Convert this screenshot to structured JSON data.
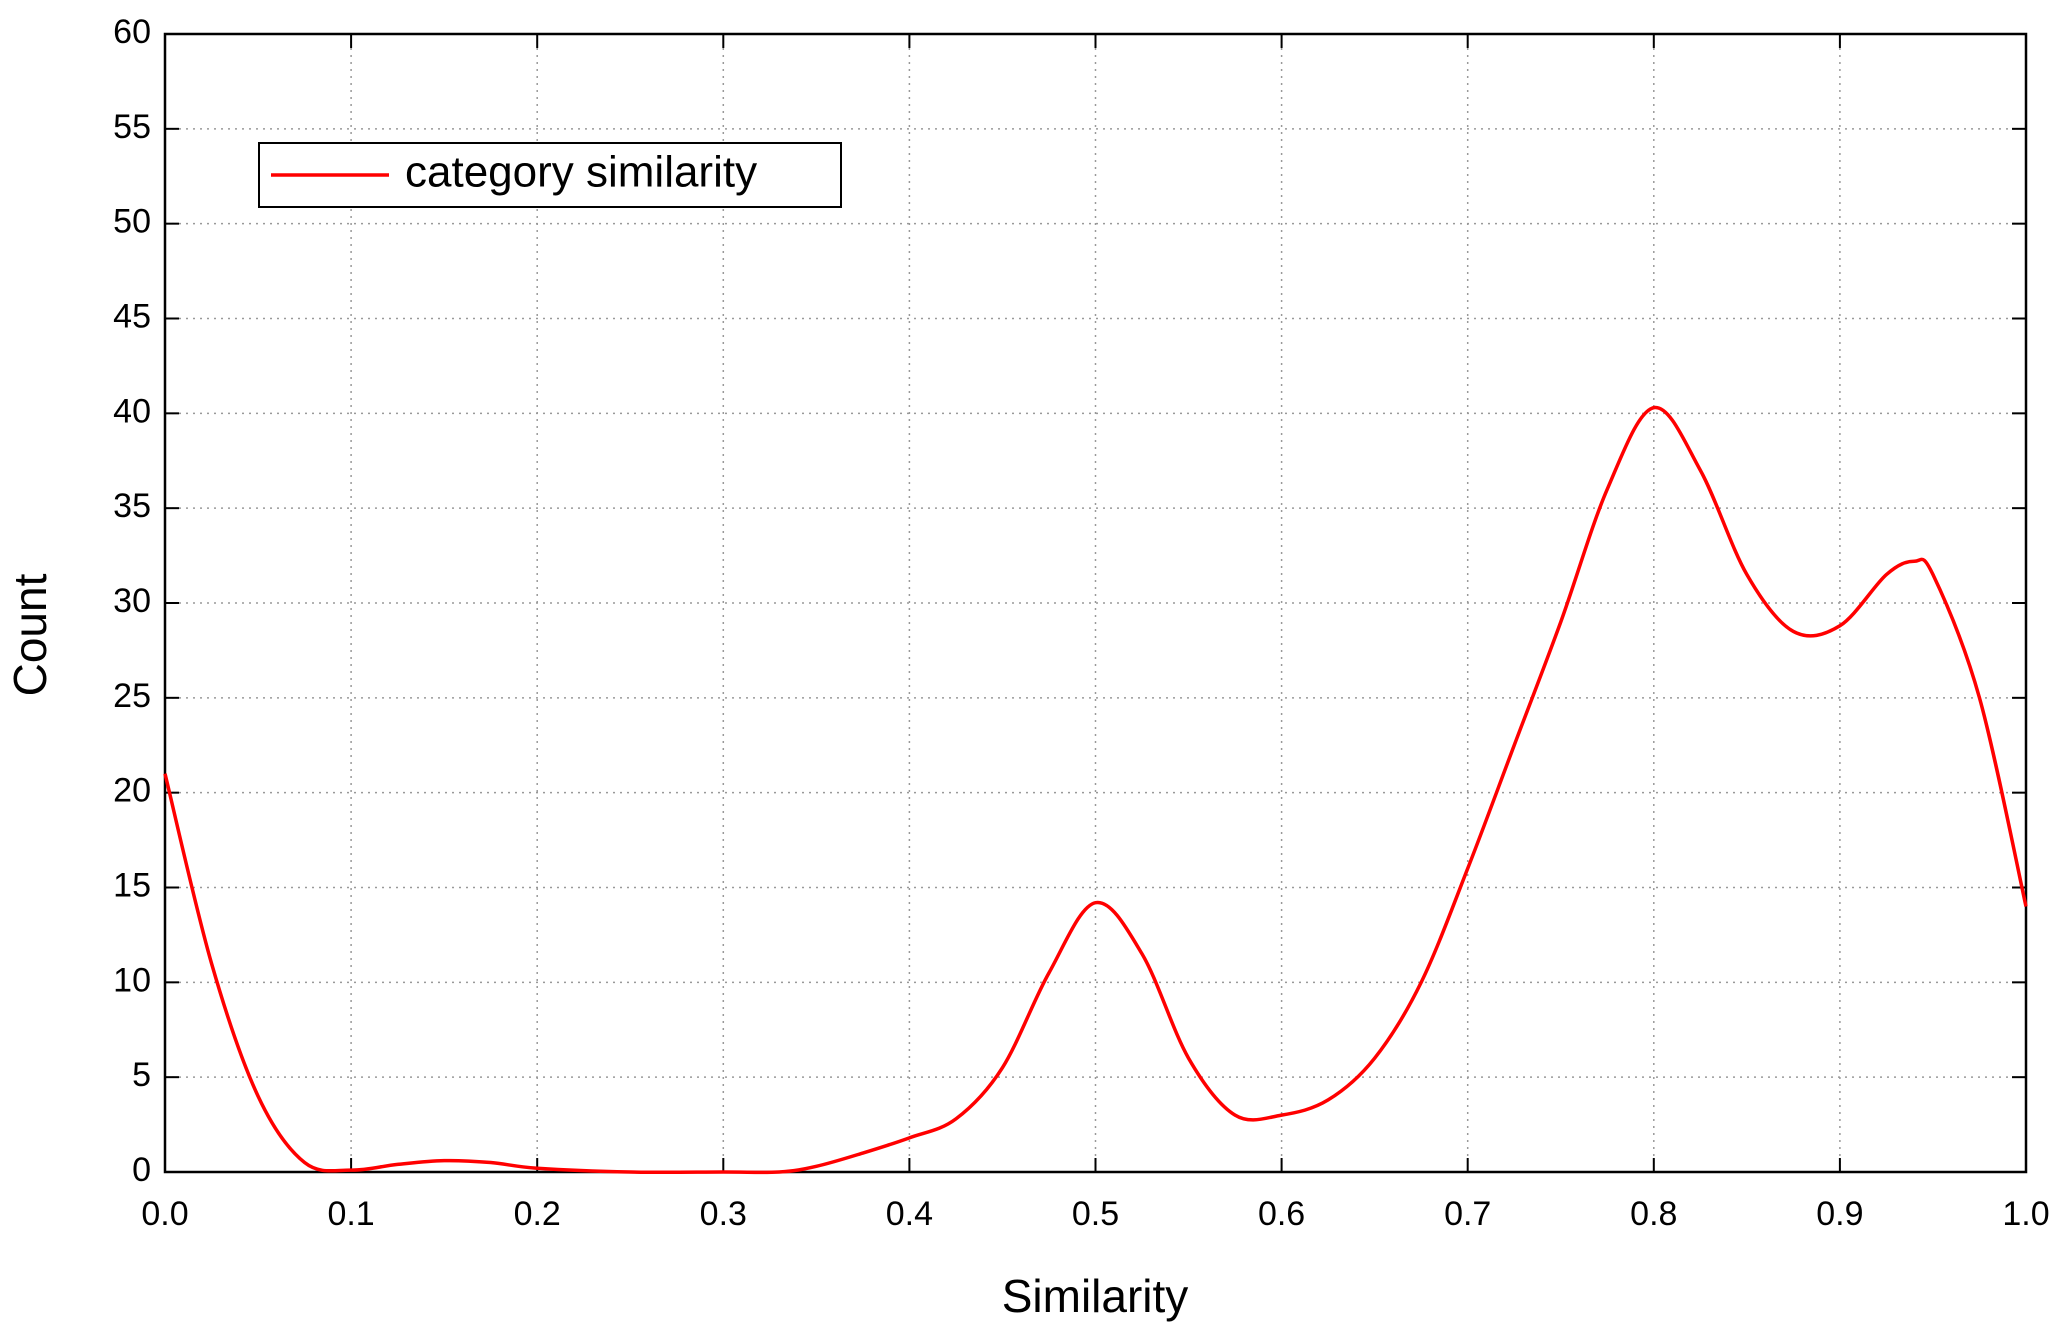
{
  "chart_data": {
    "type": "line",
    "x_label": "Similarity",
    "y_label": "Count",
    "x": [
      0,
      0.025,
      0.05,
      0.075,
      0.1,
      0.125,
      0.15,
      0.175,
      0.2,
      0.25,
      0.3,
      0.33,
      0.35,
      0.375,
      0.4,
      0.425,
      0.45,
      0.475,
      0.5,
      0.525,
      0.55,
      0.575,
      0.6,
      0.625,
      0.65,
      0.675,
      0.7,
      0.725,
      0.75,
      0.775,
      0.8,
      0.825,
      0.85,
      0.875,
      0.9,
      0.925,
      0.94,
      0.95,
      0.975,
      1.0
    ],
    "series": [
      {
        "name": "category similarity",
        "color": "#ff0000",
        "values": [
          21,
          11,
          4,
          0.5,
          0.1,
          0.4,
          0.6,
          0.5,
          0.2,
          0,
          0,
          0,
          0.3,
          1,
          1.8,
          2.8,
          5.5,
          10.5,
          14.2,
          11.5,
          6,
          3,
          3,
          3.8,
          6,
          10,
          16,
          22.5,
          29,
          36,
          40.3,
          37,
          31.5,
          28.5,
          28.8,
          31.5,
          32.2,
          31.5,
          25,
          14
        ]
      }
    ],
    "xlim": [
      0,
      1
    ],
    "ylim": [
      0,
      60
    ],
    "xticks": [
      {
        "value": 0,
        "label": "0.0"
      },
      0.1,
      0.2,
      0.3,
      0.4,
      0.5,
      0.6,
      0.7,
      0.8,
      0.9,
      {
        "value": 1,
        "label": "1.0"
      }
    ],
    "yticks": [
      0,
      5,
      10,
      15,
      20,
      25,
      30,
      35,
      40,
      45,
      50,
      55,
      60
    ],
    "grid": true,
    "legend": "upper left"
  }
}
